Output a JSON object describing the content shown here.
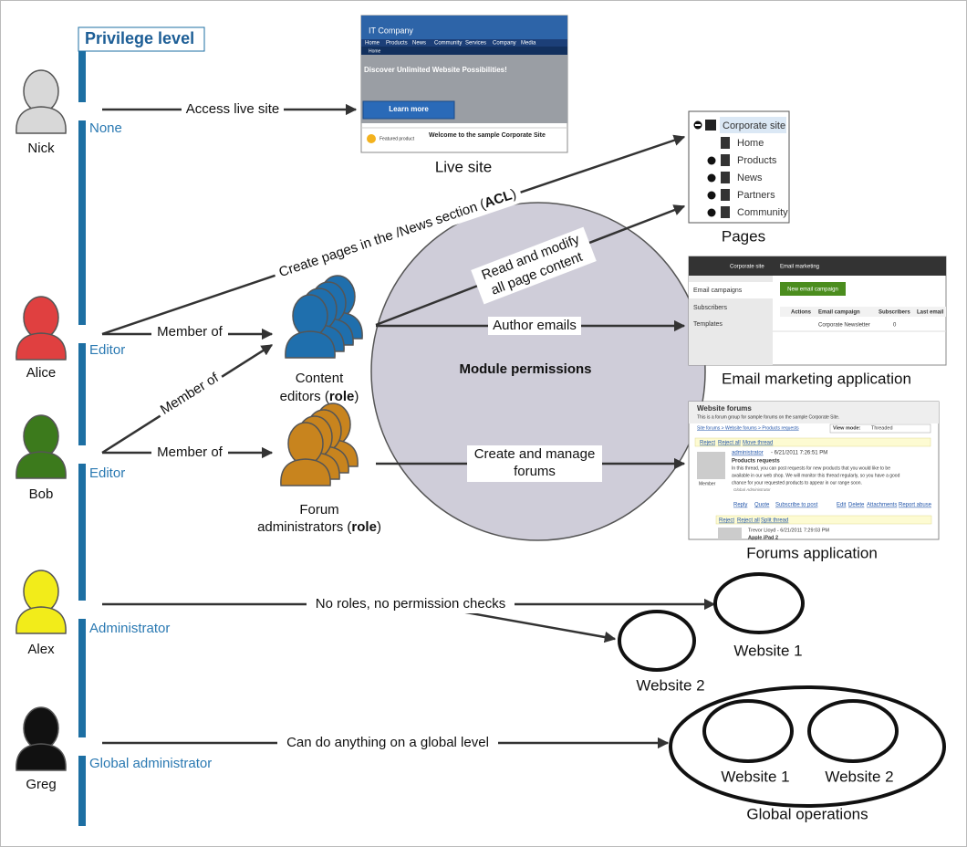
{
  "privilege_level": {
    "title": "Privilege level",
    "levels": [
      "None",
      "Editor",
      "Editor",
      "Administrator",
      "Global administrator"
    ]
  },
  "users": [
    "Nick",
    "Alice",
    "Bob",
    "Alex",
    "Greg"
  ],
  "roles": [
    {
      "lines": [
        "Content",
        "editors ("
      ],
      "bold": "role",
      "suffix": ")"
    },
    {
      "lines": [
        "Forum",
        "administrators ("
      ],
      "bold": "role",
      "suffix": ")"
    }
  ],
  "module_permissions": "Module permissions",
  "edges": {
    "access_live_site": "Access live site",
    "create_pages": {
      "text": "Create pages in the /News section (",
      "bold": "ACL",
      "suffix": ")"
    },
    "member_of": [
      "Member of",
      "Member of",
      "Member of"
    ],
    "read_modify": [
      "Read and modify",
      "all page content"
    ],
    "author_emails": "Author emails",
    "manage_forums": [
      "Create and manage",
      "forums"
    ],
    "no_roles": "No roles, no permission checks",
    "global": "Can do anything on a global level"
  },
  "targets": {
    "live_site": {
      "label": "Live site",
      "logo": "IT Company",
      "nav": [
        "Home",
        "Products",
        "News",
        "Community",
        "Services",
        "Company",
        "Media"
      ],
      "crumb": "Home",
      "heading": "Discover Unlimited Website Possibilities!",
      "button": "Learn more",
      "featured": "Featured product",
      "welcome": "Welcome to the sample Corporate Site"
    },
    "pages": {
      "label": "Pages",
      "root": "Corporate site",
      "items": [
        "Home",
        "Products",
        "News",
        "Partners",
        "Community"
      ]
    },
    "email": {
      "label": "Email marketing application",
      "site": "Corporate site",
      "app": "Email marketing",
      "menu": [
        "Email campaigns",
        "Subscribers",
        "Templates"
      ],
      "button": "New email campaign",
      "columns": [
        "Actions",
        "Email campaign",
        "Subscribers",
        "Last email"
      ],
      "row": [
        "Corporate Newsletter",
        "0"
      ]
    },
    "forums": {
      "label": "Forums application",
      "title": "Website forums",
      "subtitle": "This is a forum group for sample forums on the sample Corporate Site.",
      "crumb": "Site forums > Website forums > Products requests",
      "view_mode": "View mode:",
      "mode": "Threaded",
      "actions": [
        "Reject",
        "Reject all",
        "Move thread"
      ],
      "author": "administrator",
      "date": "- 6/21/2011 7:26:51 PM",
      "subject": "Products requests",
      "body": [
        "In this thread, you can post requests for new products that you would like to be",
        "available in our web shop. We will monitor this thread regularly, so you have a good",
        "chance for your requested products to appear in our range soon."
      ],
      "signature": "Global Administrator",
      "member": "Member",
      "links": [
        "Reply",
        "Quote",
        "Subscribe to post",
        "Edit",
        "Delete",
        "Attachments",
        "Report abuse"
      ],
      "actions2": [
        "Reject",
        "Reject all",
        "Split thread"
      ],
      "reply_author": "Trevor Lloyd - 6/21/2011 7:29:03 PM",
      "reply_subject": "Apple iPad 2"
    },
    "website_1": "Website 1",
    "website_2": "Website 2",
    "global": {
      "label": "Global operations",
      "sites": [
        "Website 1",
        "Website 2"
      ]
    }
  }
}
